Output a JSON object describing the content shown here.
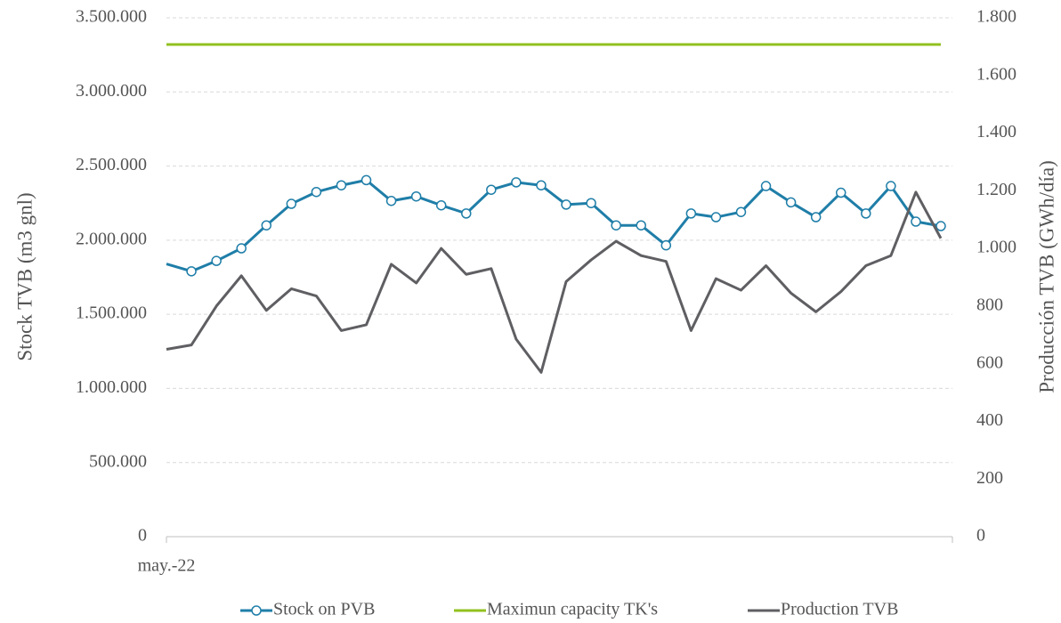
{
  "chart_data": {
    "type": "line",
    "categories": [
      "may.-22",
      null,
      null,
      null,
      null,
      null,
      null,
      null,
      null,
      null,
      null,
      null,
      null,
      null,
      null,
      null,
      null,
      null,
      null,
      null,
      null,
      null,
      null,
      null,
      null,
      null,
      null,
      null,
      null,
      null,
      null,
      null
    ],
    "series": [
      {
        "name": "Stock on PVB",
        "color": "#1f7ea8",
        "marker": true,
        "axis": "y",
        "values": [
          1840000,
          1790000,
          1860000,
          1945000,
          2100000,
          2245000,
          2325000,
          2370000,
          2405000,
          2265000,
          2295000,
          2235000,
          2180000,
          2340000,
          2390000,
          2370000,
          2240000,
          2250000,
          2100000,
          2100000,
          1965000,
          2180000,
          2155000,
          2190000,
          2365000,
          2255000,
          2155000,
          2320000,
          2180000,
          2365000,
          2125000,
          2095000
        ]
      },
      {
        "name": "Maximun capacity TK's",
        "color": "#92c01f",
        "marker": false,
        "axis": "y",
        "values": [
          3320000,
          3320000,
          3320000,
          3320000,
          3320000,
          3320000,
          3320000,
          3320000,
          3320000,
          3320000,
          3320000,
          3320000,
          3320000,
          3320000,
          3320000,
          3320000,
          3320000,
          3320000,
          3320000,
          3320000,
          3320000,
          3320000,
          3320000,
          3320000,
          3320000,
          3320000,
          3320000,
          3320000,
          3320000,
          3320000,
          3320000,
          3320000
        ]
      },
      {
        "name": "Production TVB",
        "color": "#5f5f63",
        "marker": false,
        "axis": "y2",
        "values": [
          650,
          665,
          800,
          905,
          785,
          860,
          835,
          715,
          735,
          945,
          880,
          1000,
          910,
          930,
          685,
          570,
          885,
          960,
          1025,
          975,
          955,
          715,
          895,
          855,
          940,
          845,
          780,
          850,
          940,
          975,
          1195,
          1035
        ]
      }
    ],
    "y_label": "Stock TVB (m3 gnl)",
    "y2_label": "Producción TVB (GWh/día)",
    "ylim": [
      0,
      3500000
    ],
    "yticks": [
      0,
      {
        "value": 500000,
        "label": "500.000"
      },
      {
        "value": 1000000,
        "label": "1.000.000"
      },
      {
        "value": 1500000,
        "label": "1.500.000"
      },
      {
        "value": 2000000,
        "label": "2.000.000"
      },
      {
        "value": 2500000,
        "label": "2.500.000"
      },
      {
        "value": 3000000,
        "label": "3.000.000"
      },
      {
        "value": 3500000,
        "label": "3.500.000"
      }
    ],
    "y2lim": [
      0,
      1800
    ],
    "y2ticks": [
      0,
      200,
      400,
      600,
      800,
      {
        "value": 1000,
        "label": "1.000"
      },
      {
        "value": 1200,
        "label": "1.200"
      },
      {
        "value": 1400,
        "label": "1.400"
      },
      {
        "value": 1600,
        "label": "1.600"
      },
      {
        "value": 1800,
        "label": "1.800"
      }
    ],
    "grid": true,
    "legend": "bottom"
  }
}
